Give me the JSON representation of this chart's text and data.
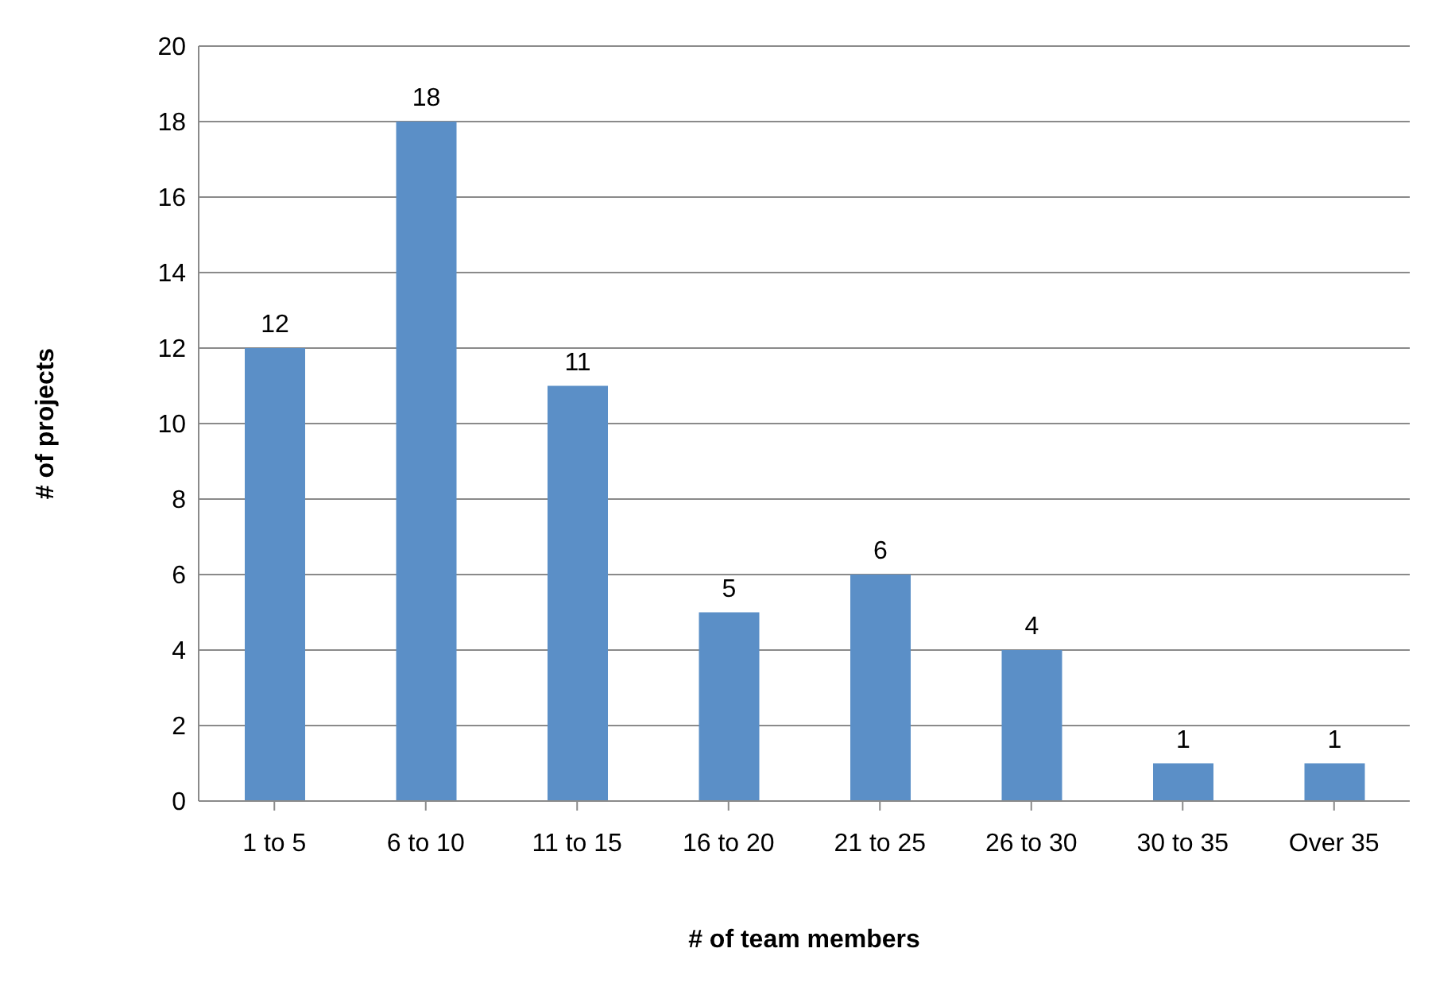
{
  "chart_data": {
    "type": "bar",
    "xlabel": "# of team members",
    "ylabel": "# of projects",
    "categories": [
      "1 to 5",
      "6 to 10",
      "11 to 15",
      "16 to 20",
      "21 to 25",
      "26 to 30",
      "30 to 35",
      "Over 35"
    ],
    "values": [
      12,
      18,
      11,
      5,
      6,
      4,
      1,
      1
    ],
    "color": "#5b8fc7",
    "ylim": [
      0,
      20
    ],
    "yticks": [
      0,
      2,
      4,
      6,
      8,
      10,
      12,
      14,
      16,
      18,
      20
    ],
    "grid": "y",
    "data_labels": true,
    "legend": false
  }
}
